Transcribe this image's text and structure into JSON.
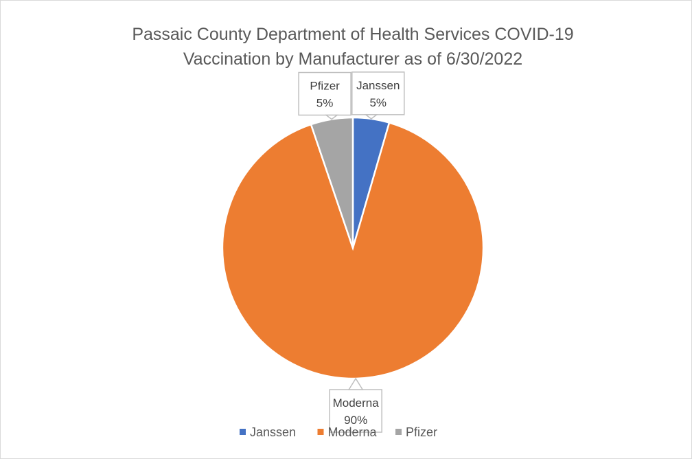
{
  "chart_data": {
    "type": "pie",
    "title_lines": [
      "Passaic County Department of Health Services COVID-19",
      "Vaccination by Manufacturer as of 6/30/2022"
    ],
    "categories": [
      "Janssen",
      "Moderna",
      "Pfizer"
    ],
    "values": [
      4.5,
      90.3,
      5.2
    ],
    "labels": [
      {
        "name": "Janssen",
        "percent": "5%"
      },
      {
        "name": "Moderna",
        "percent": "90%"
      },
      {
        "name": "Pfizer",
        "percent": "5%"
      }
    ],
    "colors": [
      "#4472C4",
      "#ED7D31",
      "#A5A5A5"
    ],
    "legend_position": "bottom"
  }
}
